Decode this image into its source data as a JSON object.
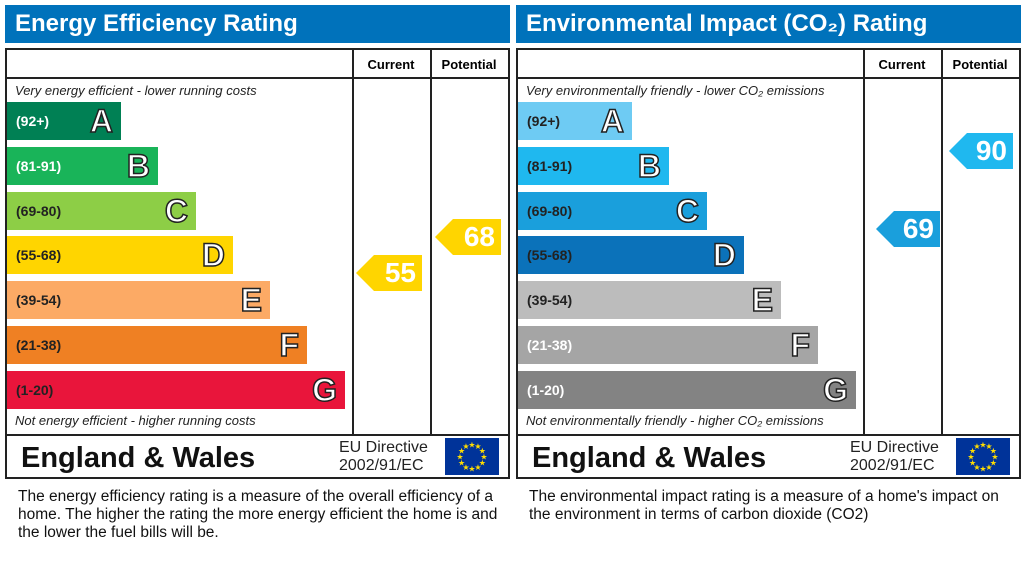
{
  "panels": [
    {
      "title": "Energy Efficiency Rating",
      "col_current": "Current",
      "col_potential": "Potential",
      "top_note": "Very energy efficient - lower running costs",
      "bottom_note": "Not energy efficient - higher running costs",
      "bands": [
        {
          "range": "(92+)",
          "letter": "A",
          "color": "#008054",
          "text_color": "#ffffff"
        },
        {
          "range": "(81-91)",
          "letter": "B",
          "color": "#19b459",
          "text_color": "#ffffff"
        },
        {
          "range": "(69-80)",
          "letter": "C",
          "color": "#8dce46",
          "text_color": "#222222"
        },
        {
          "range": "(55-68)",
          "letter": "D",
          "color": "#ffd500",
          "text_color": "#222222"
        },
        {
          "range": "(39-54)",
          "letter": "E",
          "color": "#fcaa65",
          "text_color": "#222222"
        },
        {
          "range": "(21-38)",
          "letter": "F",
          "color": "#ef8023",
          "text_color": "#222222"
        },
        {
          "range": "(1-20)",
          "letter": "G",
          "color": "#e9153b",
          "text_color": "#222222"
        }
      ],
      "current": {
        "value": "55",
        "color": "#ffd500"
      },
      "potential": {
        "value": "68",
        "color": "#ffd500"
      },
      "region": "England & Wales",
      "directive": [
        "EU Directive",
        "2002/91/EC"
      ],
      "description": "The energy efficiency rating is a measure of the overall efficiency of a home.  The higher the rating the more energy efficient the home is and the lower the fuel bills will be."
    },
    {
      "title": "Environmental Impact (CO₂) Rating",
      "col_current": "Current",
      "col_potential": "Potential",
      "top_note": "Very environmentally friendly - lower CO₂ emissions",
      "bottom_note": "Not environmentally friendly - higher CO₂ emissions",
      "bands": [
        {
          "range": "(92+)",
          "letter": "A",
          "color": "#6ecbf3",
          "text_color": "#222222"
        },
        {
          "range": "(81-91)",
          "letter": "B",
          "color": "#1fb8ef",
          "text_color": "#222222"
        },
        {
          "range": "(69-80)",
          "letter": "C",
          "color": "#1a9fdc",
          "text_color": "#222222"
        },
        {
          "range": "(55-68)",
          "letter": "D",
          "color": "#0b72ba",
          "text_color": "#222222"
        },
        {
          "range": "(39-54)",
          "letter": "E",
          "color": "#bcbcbc",
          "text_color": "#222222"
        },
        {
          "range": "(21-38)",
          "letter": "F",
          "color": "#a5a5a5",
          "text_color": "#ffffff"
        },
        {
          "range": "(1-20)",
          "letter": "G",
          "color": "#838383",
          "text_color": "#ffffff"
        }
      ],
      "current": {
        "value": "69",
        "color": "#1a9fdc"
      },
      "potential": {
        "value": "90",
        "color": "#1fb8ef"
      },
      "region": "England & Wales",
      "directive": [
        "EU Directive",
        "2002/91/EC"
      ],
      "description": "The environmental impact rating is a measure of a home's impact on the environment in terms of carbon dioxide (CO2)"
    }
  ]
}
